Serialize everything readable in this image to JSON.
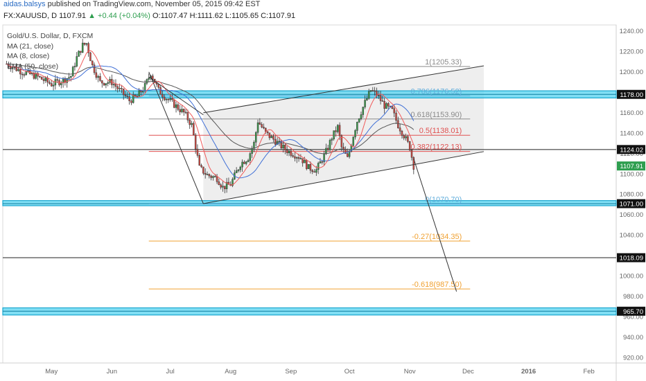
{
  "header": {
    "author": "aidas.balsys",
    "published_text": "published on TradingView.com, November 05, 2015 09:42 EST",
    "symbol": "FX:XAUUSD, D",
    "last": "1107.91",
    "change": "+0.44 (+0.04%)",
    "ohlc": "O:1107.47 H:1111.62 L:1105.65 C:1107.91"
  },
  "legend": [
    "Gold/U.S. Dollar, D, FXCM",
    "MA (21, close)",
    "MA (8, close)",
    "EMA (50, close)"
  ],
  "colors": {
    "bull": "#3a9d4c",
    "bear": "#d24a43",
    "ma21": "#f05a5a",
    "ma8": "#3f6fd6",
    "ema50": "#555555",
    "zone_fill": "#56d3f0",
    "zone_line": "#1aa7cf",
    "fib_gray": "#8a8a8a",
    "fib_red": "#e05050",
    "fib_orange": "#f0a030",
    "fib_blue": "#62aedc",
    "last_price_bg": "#2e9e4f"
  },
  "chart_data": {
    "type": "candlestick",
    "symbol": "FX:XAUUSD",
    "interval": "D",
    "ylim": [
      915,
      1246
    ],
    "y_ticks": [
      920,
      940,
      960,
      980,
      1000,
      1020,
      1040,
      1060,
      1080,
      1100,
      1120,
      1140,
      1160,
      1180,
      1200,
      1220,
      1240
    ],
    "x_ticks": [
      {
        "label": "May",
        "day": 0
      },
      {
        "label": "Jun",
        "day": 31
      },
      {
        "label": "Jul",
        "day": 61
      },
      {
        "label": "Aug",
        "day": 92
      },
      {
        "label": "Sep",
        "day": 123
      },
      {
        "label": "Oct",
        "day": 153
      },
      {
        "label": "Nov",
        "day": 184
      },
      {
        "label": "Dec",
        "day": 214
      },
      {
        "label": "2016",
        "day": 245
      },
      {
        "label": "Feb",
        "day": 276
      }
    ],
    "x_range_days": [
      -25,
      290
    ],
    "key_points": [
      [
        -23,
        1208
      ],
      [
        -15,
        1200
      ],
      [
        -8,
        1196
      ],
      [
        0,
        1188
      ],
      [
        6,
        1192
      ],
      [
        10,
        1196
      ],
      [
        13,
        1214
      ],
      [
        16,
        1226
      ],
      [
        18,
        1228
      ],
      [
        21,
        1206
      ],
      [
        25,
        1190
      ],
      [
        31,
        1190
      ],
      [
        36,
        1180
      ],
      [
        40,
        1172
      ],
      [
        44,
        1176
      ],
      [
        48,
        1186
      ],
      [
        51,
        1199
      ],
      [
        55,
        1182
      ],
      [
        58,
        1176
      ],
      [
        63,
        1168
      ],
      [
        68,
        1160
      ],
      [
        72,
        1148
      ],
      [
        76,
        1106
      ],
      [
        80,
        1099
      ],
      [
        85,
        1096
      ],
      [
        88,
        1087
      ],
      [
        92,
        1090
      ],
      [
        97,
        1110
      ],
      [
        101,
        1116
      ],
      [
        104,
        1130
      ],
      [
        106,
        1152
      ],
      [
        110,
        1140
      ],
      [
        114,
        1134
      ],
      [
        120,
        1124
      ],
      [
        124,
        1120
      ],
      [
        128,
        1116
      ],
      [
        132,
        1106
      ],
      [
        136,
        1104
      ],
      [
        140,
        1118
      ],
      [
        142,
        1126
      ],
      [
        144,
        1136
      ],
      [
        147,
        1146
      ],
      [
        149,
        1126
      ],
      [
        152,
        1115
      ],
      [
        155,
        1138
      ],
      [
        157,
        1152
      ],
      [
        161,
        1170
      ],
      [
        164,
        1182
      ],
      [
        167,
        1178
      ],
      [
        171,
        1167
      ],
      [
        175,
        1162
      ],
      [
        178,
        1148
      ],
      [
        181,
        1138
      ],
      [
        184,
        1126
      ],
      [
        186,
        1108
      ]
    ],
    "horizontal_zones": [
      {
        "price": 1178.0,
        "label": "1178.00",
        "band": [
          1174.5,
          1181.5
        ]
      },
      {
        "price": 1071.0,
        "label": "1071.00",
        "band": [
          1069.0,
          1074.0
        ]
      },
      {
        "price": 965.7,
        "label": "965.70",
        "band": [
          962.0,
          969.0
        ]
      }
    ],
    "horizontal_lines": [
      {
        "price": 1124.02,
        "label": "1124.02"
      },
      {
        "price": 1018.09,
        "label": "1018.09"
      }
    ],
    "last_price": {
      "price": 1107.91,
      "label": "1107.91"
    },
    "fibonacci": [
      {
        "level": "1",
        "price": 1205.33,
        "label": "1(1205.33)",
        "color": "#8a8a8a"
      },
      {
        "level": "0.786",
        "price": 1176.52,
        "label": "0.786(1176.52)",
        "color": "#62aedc"
      },
      {
        "level": "0.618",
        "price": 1153.9,
        "label": "0.618(1153.90)",
        "color": "#8a8a8a"
      },
      {
        "level": "0.5",
        "price": 1138.01,
        "label": "0.5(1138.01)",
        "color": "#e05050"
      },
      {
        "level": "0.382",
        "price": 1122.13,
        "label": "0.382(1122.13)",
        "color": "#e05050"
      },
      {
        "level": "0",
        "price": 1070.7,
        "label": "0(1070.70)",
        "color": "#62aedc"
      },
      {
        "level": "-0.27",
        "price": 1034.35,
        "label": "-0.27(1034.35)",
        "color": "#f0a030"
      },
      {
        "level": "-0.618",
        "price": 987.5,
        "label": "-0.618(987.50)",
        "color": "#f0a030"
      }
    ],
    "fib_x_range_days": [
      50,
      215
    ],
    "channel": {
      "upper": [
        [
          78,
          1160
        ],
        [
          222,
          1206
        ]
      ],
      "lower": [
        [
          78,
          1071
        ],
        [
          222,
          1122
        ]
      ]
    },
    "trend_lines": [
      [
        [
          50,
          1200
        ],
        [
          78,
          1071
        ]
      ],
      [
        [
          50,
          1195
        ],
        [
          78,
          1158
        ]
      ],
      [
        [
          186,
          1115
        ],
        [
          208,
          985
        ]
      ]
    ]
  }
}
